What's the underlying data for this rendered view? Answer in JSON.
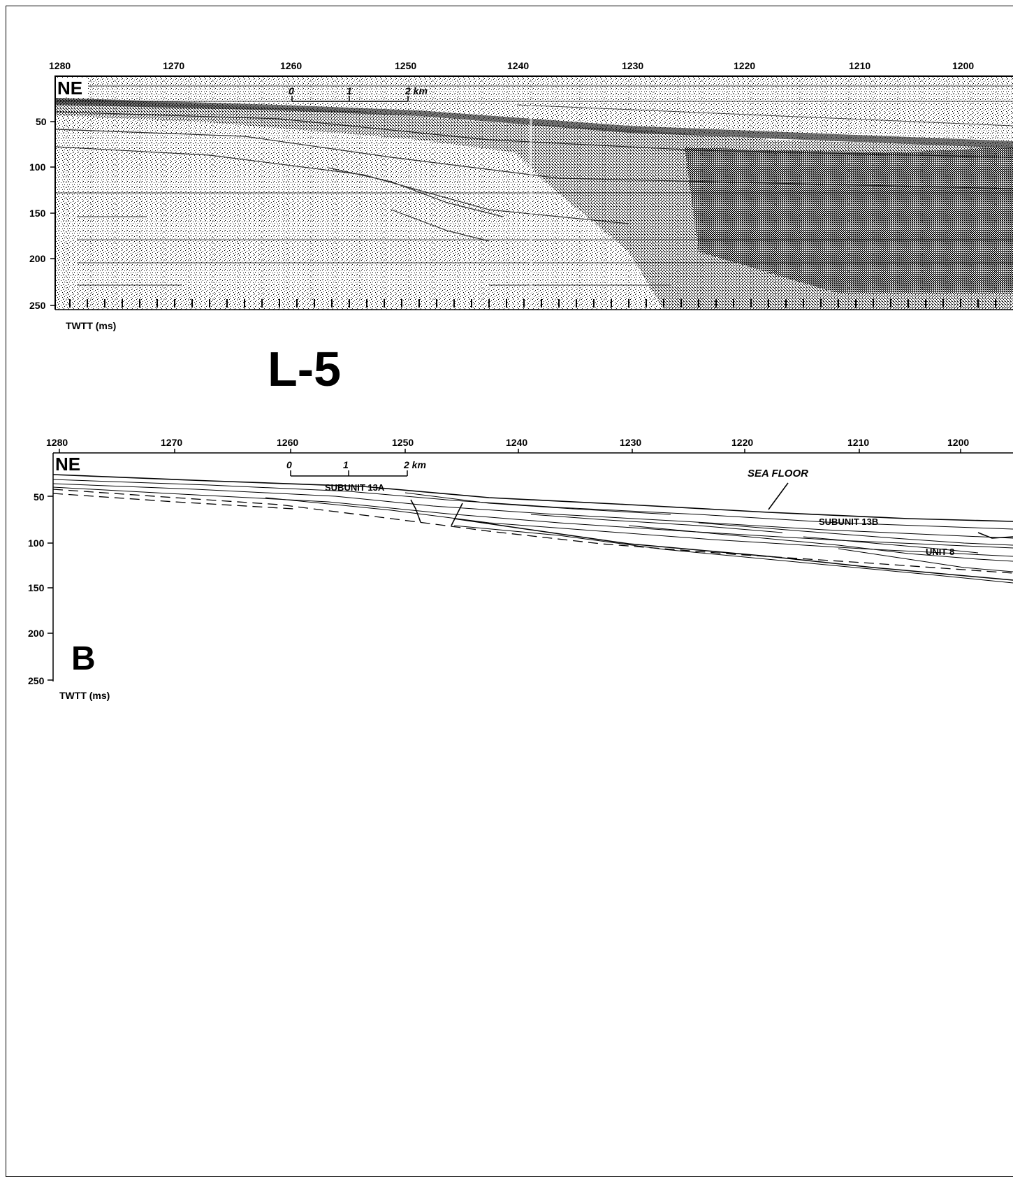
{
  "figure": {
    "line_label": "L-5",
    "panel_label": "B",
    "direction_label": "NE"
  },
  "top_profile": {
    "x_ticks": [
      "1280",
      "1270",
      "1260",
      "1250",
      "1240",
      "1230",
      "1220",
      "1210",
      "1200"
    ],
    "y_ticks": [
      "50",
      "100",
      "150",
      "200",
      "250"
    ],
    "y_axis_title": "TWTT (ms)",
    "scale_bar": {
      "ticks": [
        "0",
        "1",
        "2 km"
      ]
    }
  },
  "bottom_profile": {
    "x_ticks": [
      "1280",
      "1270",
      "1260",
      "1250",
      "1240",
      "1230",
      "1220",
      "1210",
      "1200"
    ],
    "y_ticks": [
      "50",
      "100",
      "150",
      "200",
      "250"
    ],
    "y_axis_title": "TWTT (ms)",
    "scale_bar": {
      "ticks": [
        "0",
        "1",
        "2 km"
      ]
    },
    "annotations": {
      "sea_floor": "SEA FLOOR",
      "subunit_a": "SUBUNIT 13A",
      "subunit_b": "SUBUNIT 13B",
      "unit": "UNIT 8"
    }
  }
}
